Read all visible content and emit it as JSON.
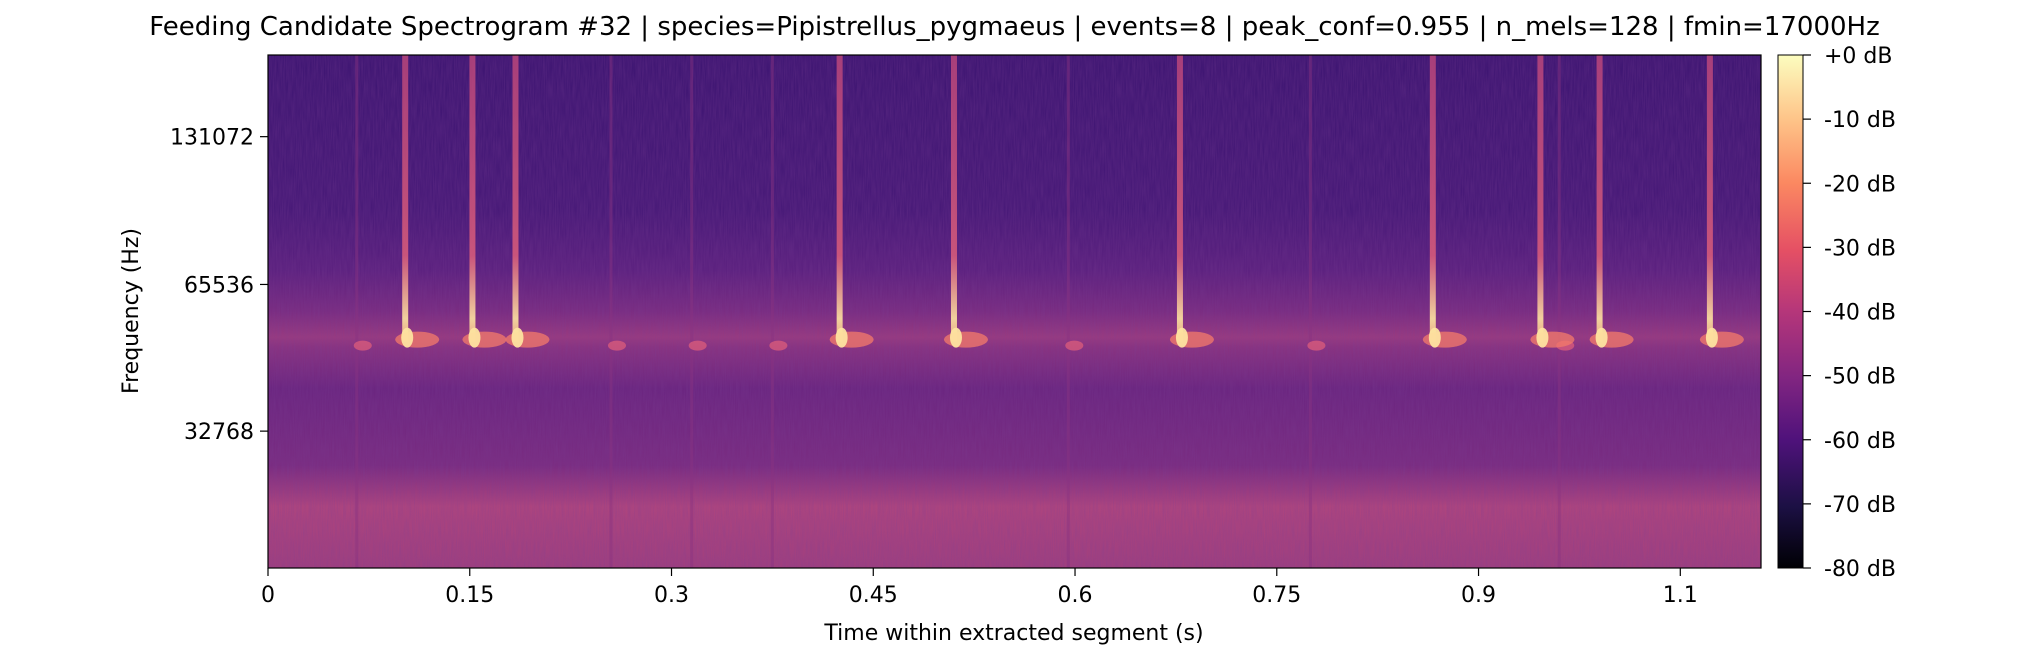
{
  "chart_data": {
    "type": "heatmap",
    "title": "Feeding Candidate Spectrogram #32 | species=Pipistrellus_pygmaeus | events=8 | peak_conf=0.955 | n_mels=128 | fmin=17000Hz",
    "xlabel": "Time within extracted segment (s)",
    "ylabel": "Frequency (Hz)",
    "x_ticks": [
      "0",
      "0.15",
      "0.3",
      "0.45",
      "0.6",
      "0.75",
      "0.9",
      "1.1"
    ],
    "x_tick_values": [
      0,
      0.15,
      0.3,
      0.45,
      0.6,
      0.75,
      0.9,
      1.05
    ],
    "xlim": [
      0,
      1.11
    ],
    "y_scale": "mel",
    "y_ticks": [
      "32768",
      "65536",
      "131072"
    ],
    "y_tick_values": [
      32768,
      65536,
      131072
    ],
    "ylim": [
      17000,
      192000
    ],
    "colormap": "magma",
    "colorbar_ticks": [
      "+0 dB",
      "-10 dB",
      "-20 dB",
      "-30 dB",
      "-40 dB",
      "-50 dB",
      "-60 dB",
      "-70 dB",
      "-80 dB"
    ],
    "colorbar_values": [
      0,
      -10,
      -20,
      -30,
      -40,
      -50,
      -60,
      -70,
      -80
    ],
    "clim": [
      -80,
      0
    ],
    "call_times_s": [
      0.102,
      0.152,
      0.184,
      0.425,
      0.51,
      0.678,
      0.866,
      0.946,
      0.99,
      1.072
    ],
    "faint_call_times_s": [
      0.066,
      0.255,
      0.315,
      0.375,
      0.595,
      0.775,
      0.96
    ],
    "grid": false
  }
}
